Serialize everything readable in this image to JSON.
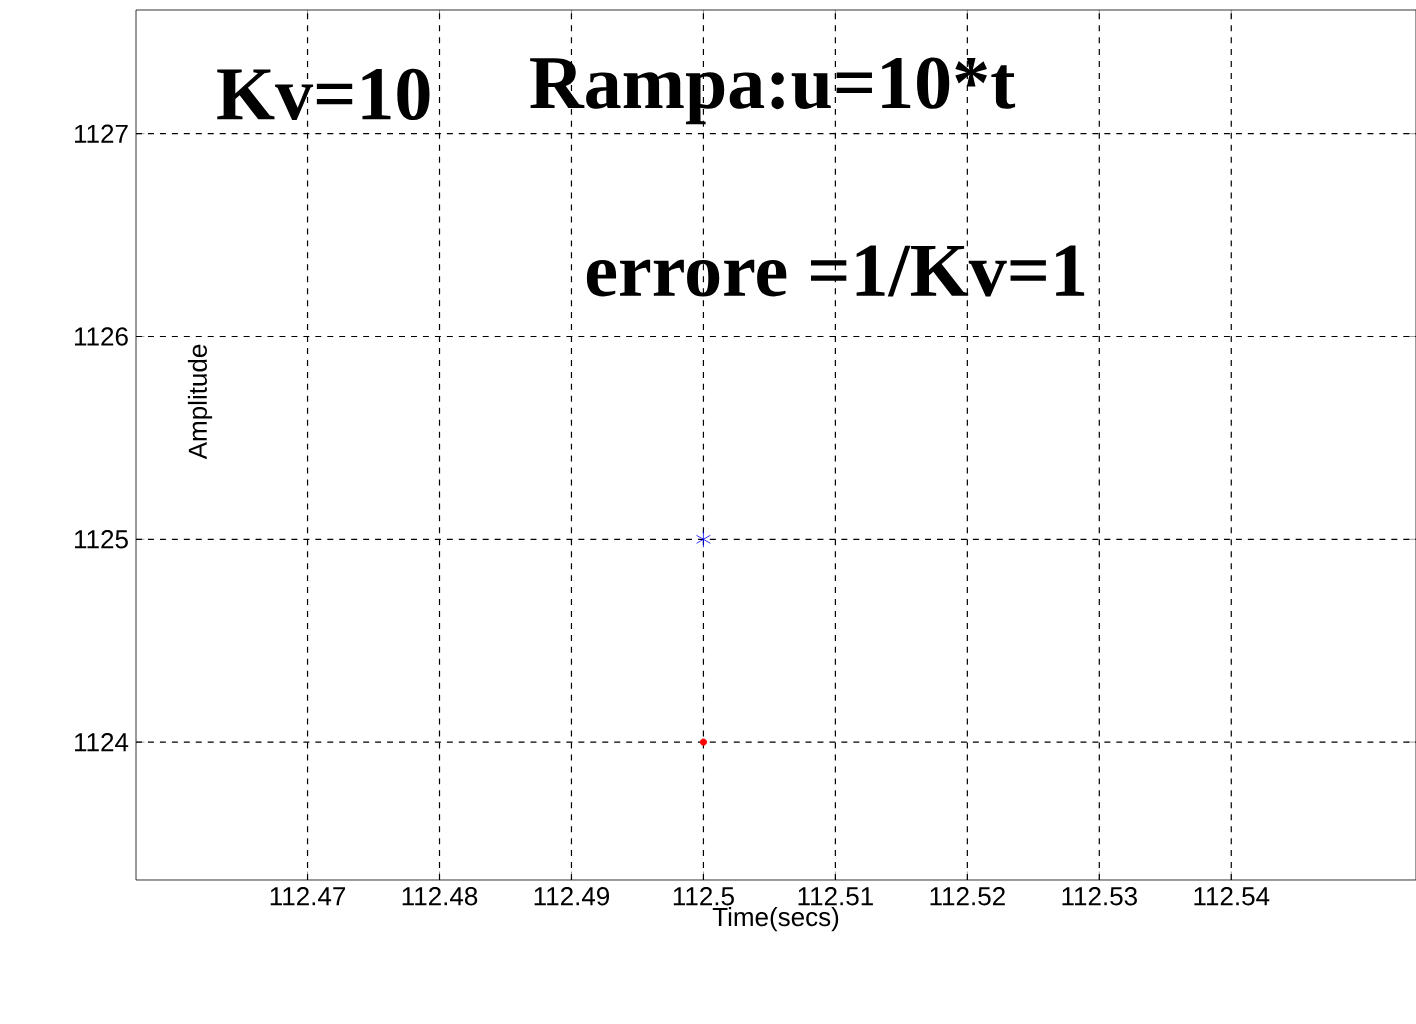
{
  "chart_data": {
    "type": "scatter",
    "xlabel": "Time(secs)",
    "ylabel": "Amplitude",
    "annotations": [
      "Kv=10",
      "Rampa:u=10*t",
      "errore =1/Kv=1"
    ],
    "series": [
      {
        "x": [
          112.5
        ],
        "values": [
          1125
        ],
        "color": "#0000ff",
        "marker": "cross"
      },
      {
        "x": [
          112.5
        ],
        "values": [
          1124
        ],
        "color": "#ff0000",
        "marker": "circle"
      }
    ],
    "xlim": [
      112.457,
      112.554
    ],
    "ylim": [
      1123.32,
      1127.61
    ],
    "xticks": [
      112.47,
      112.48,
      112.49,
      112.5,
      112.51,
      112.52,
      112.53,
      112.54
    ],
    "yticks": [
      1124,
      1125,
      1126,
      1127
    ],
    "grid": true
  }
}
